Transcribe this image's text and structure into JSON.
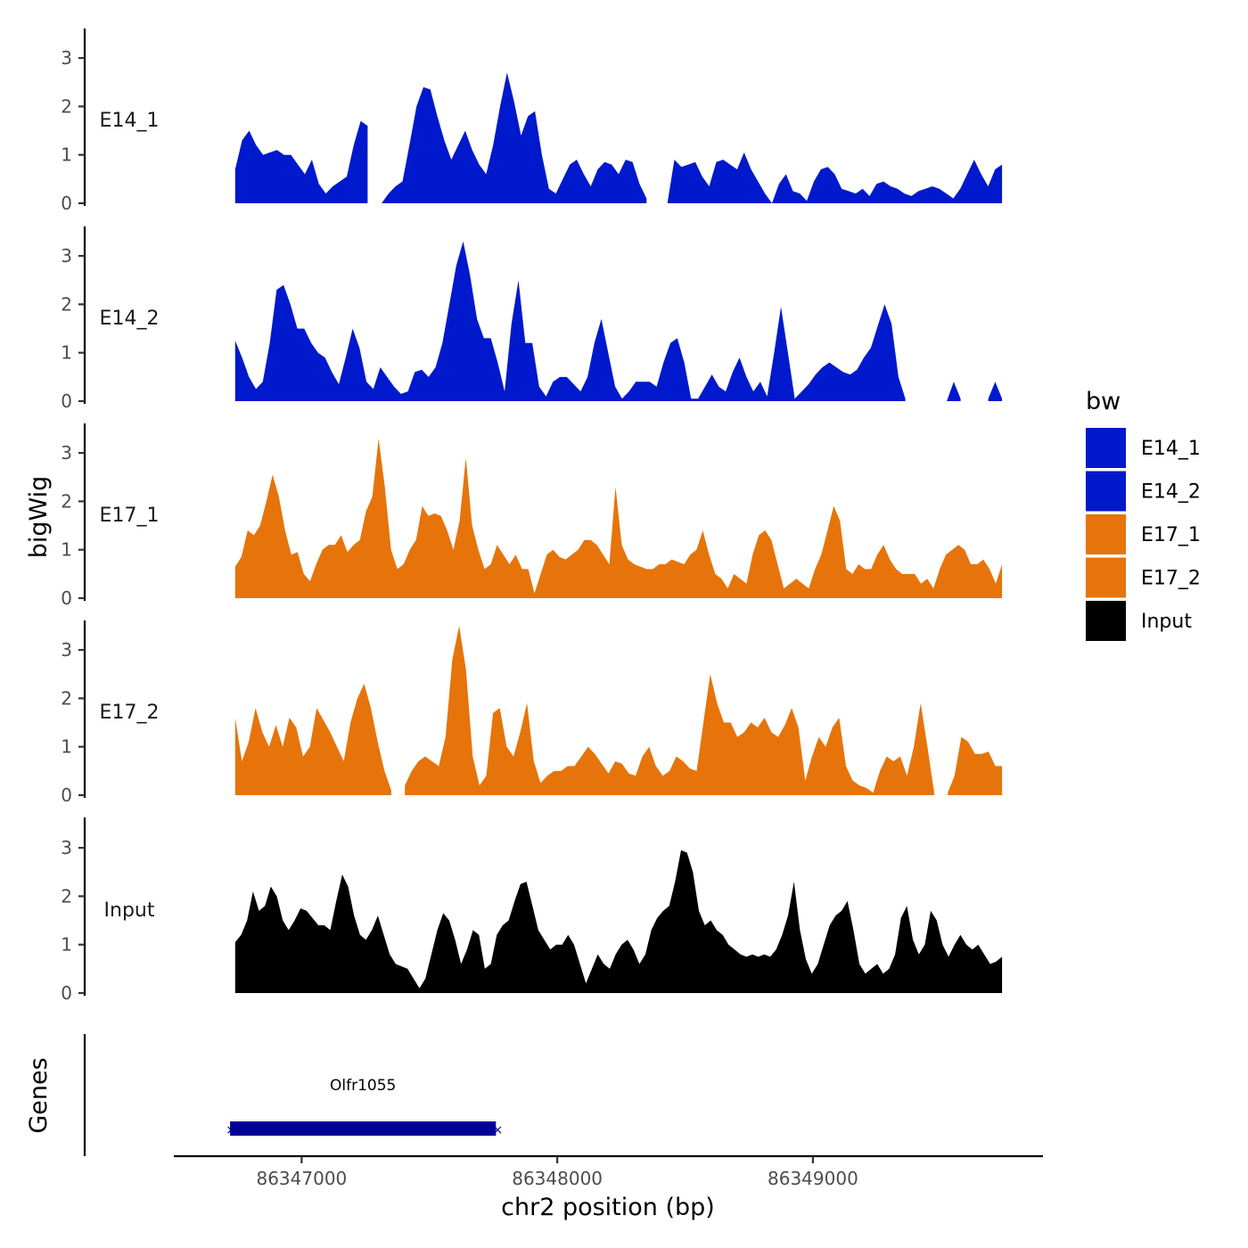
{
  "chart_data": {
    "type": "area",
    "y_axis_title": "bigWig",
    "x_axis_title": "chr2 position (bp)",
    "x_ticks": [
      86347000,
      86348000,
      86349000
    ],
    "x_range": [
      86346500,
      86349900
    ],
    "y_ticks": [
      0,
      1,
      2,
      3
    ],
    "y_range": [
      0,
      3.6
    ],
    "x_start": 86346740,
    "x_end": 86349740,
    "legend": {
      "title": "bw",
      "entries": [
        {
          "label": "E14_1",
          "color": "#0019CC"
        },
        {
          "label": "E14_2",
          "color": "#0019CC"
        },
        {
          "label": "E17_1",
          "color": "#E6740A"
        },
        {
          "label": "E17_2",
          "color": "#E6740A"
        },
        {
          "label": "Input",
          "color": "#000000"
        }
      ]
    },
    "series": [
      {
        "name": "E14_1",
        "color": "#0019CC",
        "values": [
          0.7,
          1.3,
          1.5,
          1.2,
          1.0,
          1.05,
          1.1,
          1.0,
          1.0,
          0.8,
          0.6,
          0.9,
          0.4,
          0.2,
          0.35,
          0.45,
          0.55,
          1.2,
          1.7,
          1.6,
          null,
          0.0,
          0.2,
          0.35,
          0.45,
          1.2,
          2.0,
          2.4,
          2.35,
          1.8,
          1.3,
          0.9,
          1.2,
          1.5,
          1.1,
          0.8,
          0.6,
          1.2,
          2.0,
          2.7,
          2.1,
          1.4,
          1.8,
          1.9,
          1.0,
          0.3,
          0.2,
          0.5,
          0.8,
          0.9,
          0.6,
          0.35,
          0.7,
          0.85,
          0.8,
          0.6,
          0.9,
          0.85,
          0.4,
          0.1,
          null,
          null,
          0.0,
          0.9,
          0.75,
          0.8,
          0.85,
          0.55,
          0.35,
          0.85,
          0.9,
          0.8,
          0.7,
          1.05,
          0.7,
          0.45,
          0.2,
          0.0,
          0.4,
          0.6,
          0.25,
          0.2,
          0.05,
          0.45,
          0.7,
          0.75,
          0.6,
          0.3,
          0.25,
          0.2,
          0.3,
          0.15,
          0.4,
          0.45,
          0.35,
          0.3,
          0.2,
          0.15,
          0.25,
          0.3,
          0.35,
          0.3,
          0.2,
          0.1,
          0.3,
          0.6,
          0.9,
          0.6,
          0.35,
          0.7,
          0.8
        ]
      },
      {
        "name": "E14_2",
        "color": "#0019CC",
        "values": [
          1.25,
          0.9,
          0.5,
          0.25,
          0.4,
          1.2,
          2.3,
          2.4,
          2.0,
          1.5,
          1.5,
          1.2,
          1.0,
          0.9,
          0.6,
          0.35,
          0.9,
          1.5,
          1.1,
          0.4,
          0.25,
          0.7,
          0.5,
          0.3,
          0.15,
          0.2,
          0.6,
          0.65,
          0.5,
          0.7,
          1.2,
          2.0,
          2.8,
          3.3,
          2.6,
          1.7,
          1.3,
          1.3,
          0.8,
          0.2,
          1.6,
          2.5,
          1.2,
          1.2,
          0.3,
          0.1,
          0.4,
          0.5,
          0.5,
          0.35,
          0.2,
          0.5,
          1.2,
          1.7,
          1.0,
          0.3,
          0.05,
          0.2,
          0.4,
          0.4,
          0.4,
          0.3,
          0.8,
          1.2,
          1.3,
          0.8,
          0.05,
          0.05,
          0.3,
          0.55,
          0.3,
          0.2,
          0.6,
          0.9,
          0.5,
          0.2,
          0.4,
          0.1,
          1.0,
          1.95,
          1.0,
          0.05,
          0.2,
          0.35,
          0.55,
          0.7,
          0.8,
          0.7,
          0.6,
          0.55,
          0.65,
          0.9,
          1.1,
          1.55,
          2.0,
          1.6,
          0.5,
          0.05,
          null,
          null,
          null,
          null,
          null,
          0.0,
          0.4,
          0.05,
          null,
          null,
          null,
          0.05,
          0.4,
          0.05
        ]
      },
      {
        "name": "E17_1",
        "color": "#E6740A",
        "values": [
          0.65,
          0.85,
          1.4,
          1.3,
          1.5,
          2.0,
          2.55,
          2.1,
          1.4,
          0.9,
          0.95,
          0.5,
          0.35,
          0.7,
          1.0,
          1.1,
          1.1,
          1.3,
          0.95,
          1.1,
          1.2,
          1.8,
          2.1,
          3.3,
          2.3,
          1.0,
          0.6,
          0.7,
          1.0,
          1.2,
          1.9,
          1.7,
          1.75,
          1.7,
          1.4,
          1.0,
          1.6,
          2.9,
          1.5,
          1.0,
          0.6,
          0.7,
          1.1,
          0.9,
          0.7,
          0.9,
          0.6,
          0.6,
          0.1,
          0.5,
          0.9,
          1.0,
          0.85,
          0.8,
          0.9,
          1.0,
          1.2,
          1.2,
          1.1,
          0.9,
          0.7,
          2.3,
          1.1,
          0.8,
          0.7,
          0.65,
          0.6,
          0.6,
          0.7,
          0.7,
          0.8,
          0.75,
          0.7,
          0.9,
          1.0,
          1.4,
          0.9,
          0.5,
          0.4,
          0.2,
          0.5,
          0.4,
          0.3,
          0.9,
          1.3,
          1.4,
          1.2,
          0.7,
          0.2,
          0.3,
          0.4,
          0.3,
          0.2,
          0.6,
          0.9,
          1.4,
          1.9,
          1.6,
          0.6,
          0.5,
          0.7,
          0.6,
          0.6,
          0.9,
          1.1,
          0.8,
          0.6,
          0.5,
          0.5,
          0.5,
          0.3,
          0.4,
          0.2,
          0.6,
          0.9,
          1.0,
          1.1,
          1.0,
          0.7,
          0.7,
          0.8,
          0.6,
          0.3,
          0.7
        ]
      },
      {
        "name": "E17_2",
        "color": "#E6740A",
        "values": [
          1.6,
          0.7,
          1.1,
          1.8,
          1.3,
          1.0,
          1.45,
          1.0,
          1.6,
          1.4,
          0.8,
          1.0,
          1.8,
          1.55,
          1.3,
          1.0,
          0.7,
          1.5,
          2.0,
          2.3,
          1.8,
          1.1,
          0.5,
          0.1,
          null,
          0.2,
          0.5,
          0.7,
          0.8,
          0.7,
          0.6,
          1.2,
          2.8,
          3.5,
          2.6,
          0.8,
          0.2,
          0.4,
          1.7,
          1.8,
          1.0,
          0.8,
          1.3,
          1.9,
          0.7,
          0.25,
          0.4,
          0.5,
          0.5,
          0.6,
          0.6,
          0.8,
          1.0,
          0.85,
          0.65,
          0.45,
          0.7,
          0.65,
          0.45,
          0.4,
          0.8,
          1.0,
          0.6,
          0.4,
          0.5,
          0.8,
          0.7,
          0.55,
          0.5,
          1.5,
          2.5,
          1.9,
          1.5,
          1.5,
          1.2,
          1.3,
          1.5,
          1.4,
          1.6,
          1.3,
          1.2,
          1.45,
          1.8,
          1.4,
          0.3,
          0.8,
          1.2,
          1.0,
          1.4,
          1.6,
          0.6,
          0.3,
          0.2,
          0.15,
          0.05,
          0.5,
          0.8,
          0.7,
          0.8,
          0.4,
          1.0,
          1.9,
          1.0,
          0.05,
          null,
          0.05,
          0.4,
          1.2,
          1.1,
          0.85,
          0.85,
          0.9,
          0.6,
          0.6
        ]
      },
      {
        "name": "Input",
        "color": "#000000",
        "values": [
          1.05,
          1.2,
          1.5,
          2.1,
          1.7,
          1.8,
          2.2,
          2.0,
          1.5,
          1.3,
          1.5,
          1.75,
          1.7,
          1.55,
          1.4,
          1.4,
          1.3,
          1.9,
          2.45,
          2.2,
          1.6,
          1.2,
          1.1,
          1.3,
          1.6,
          1.2,
          0.8,
          0.6,
          0.55,
          0.5,
          0.3,
          0.1,
          0.3,
          0.8,
          1.3,
          1.65,
          1.5,
          1.1,
          0.6,
          0.9,
          1.3,
          1.2,
          0.5,
          0.6,
          1.2,
          1.4,
          1.5,
          1.9,
          2.25,
          2.3,
          1.8,
          1.3,
          1.1,
          0.9,
          1.0,
          1.0,
          1.2,
          1.0,
          0.6,
          0.2,
          0.5,
          0.8,
          0.6,
          0.5,
          0.8,
          1.0,
          1.1,
          0.9,
          0.6,
          0.8,
          1.3,
          1.55,
          1.7,
          1.8,
          2.3,
          2.95,
          2.9,
          2.5,
          1.7,
          1.4,
          1.5,
          1.3,
          1.2,
          1.0,
          0.9,
          0.8,
          0.75,
          0.8,
          0.75,
          0.8,
          0.75,
          0.9,
          1.2,
          1.6,
          2.3,
          1.3,
          0.7,
          0.4,
          0.6,
          1.0,
          1.4,
          1.6,
          1.7,
          1.9,
          1.3,
          0.6,
          0.4,
          0.5,
          0.6,
          0.4,
          0.5,
          0.8,
          1.55,
          1.8,
          1.1,
          0.8,
          1.0,
          1.7,
          1.5,
          1.0,
          0.75,
          1.0,
          1.2,
          1.0,
          0.9,
          1.0,
          0.8,
          0.6,
          0.65,
          0.75
        ]
      }
    ],
    "genes": [
      {
        "name": "Olfr1055",
        "start": 86346720,
        "end": 86347760,
        "color": "#000099"
      }
    ],
    "genes_track_title": "Genes"
  }
}
